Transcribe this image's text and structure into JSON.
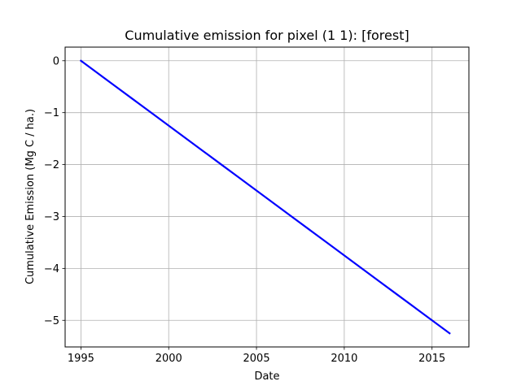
{
  "chart_data": {
    "type": "line",
    "title": "Cumulative emission for pixel (1 1): [forest]",
    "xlabel": "Date",
    "ylabel": "Cumulative Emission (Mg C / ha.)",
    "xlim": [
      1994.1,
      2017.1
    ],
    "ylim": [
      -5.5125,
      0.2625
    ],
    "x_ticks": [
      1995,
      2000,
      2005,
      2010,
      2015
    ],
    "x_tick_labels": [
      "1995",
      "2000",
      "2005",
      "2010",
      "2015"
    ],
    "y_ticks": [
      0,
      -1,
      -2,
      -3,
      -4,
      -5
    ],
    "y_tick_labels": [
      "0",
      "−1",
      "−2",
      "−3",
      "−4",
      "−5"
    ],
    "grid": true,
    "series": [
      {
        "color": "#0000ff",
        "x": [
          1995,
          1996,
          1997,
          1998,
          1999,
          2000,
          2001,
          2002,
          2003,
          2004,
          2005,
          2006,
          2007,
          2008,
          2009,
          2010,
          2011,
          2012,
          2013,
          2014,
          2015,
          2016
        ],
        "y": [
          0,
          -0.25,
          -0.5,
          -0.75,
          -1.0,
          -1.25,
          -1.5,
          -1.75,
          -2.0,
          -2.25,
          -2.5,
          -2.75,
          -3.0,
          -3.25,
          -3.5,
          -3.75,
          -4.0,
          -4.25,
          -4.5,
          -4.75,
          -5.0,
          -5.25
        ]
      }
    ]
  }
}
